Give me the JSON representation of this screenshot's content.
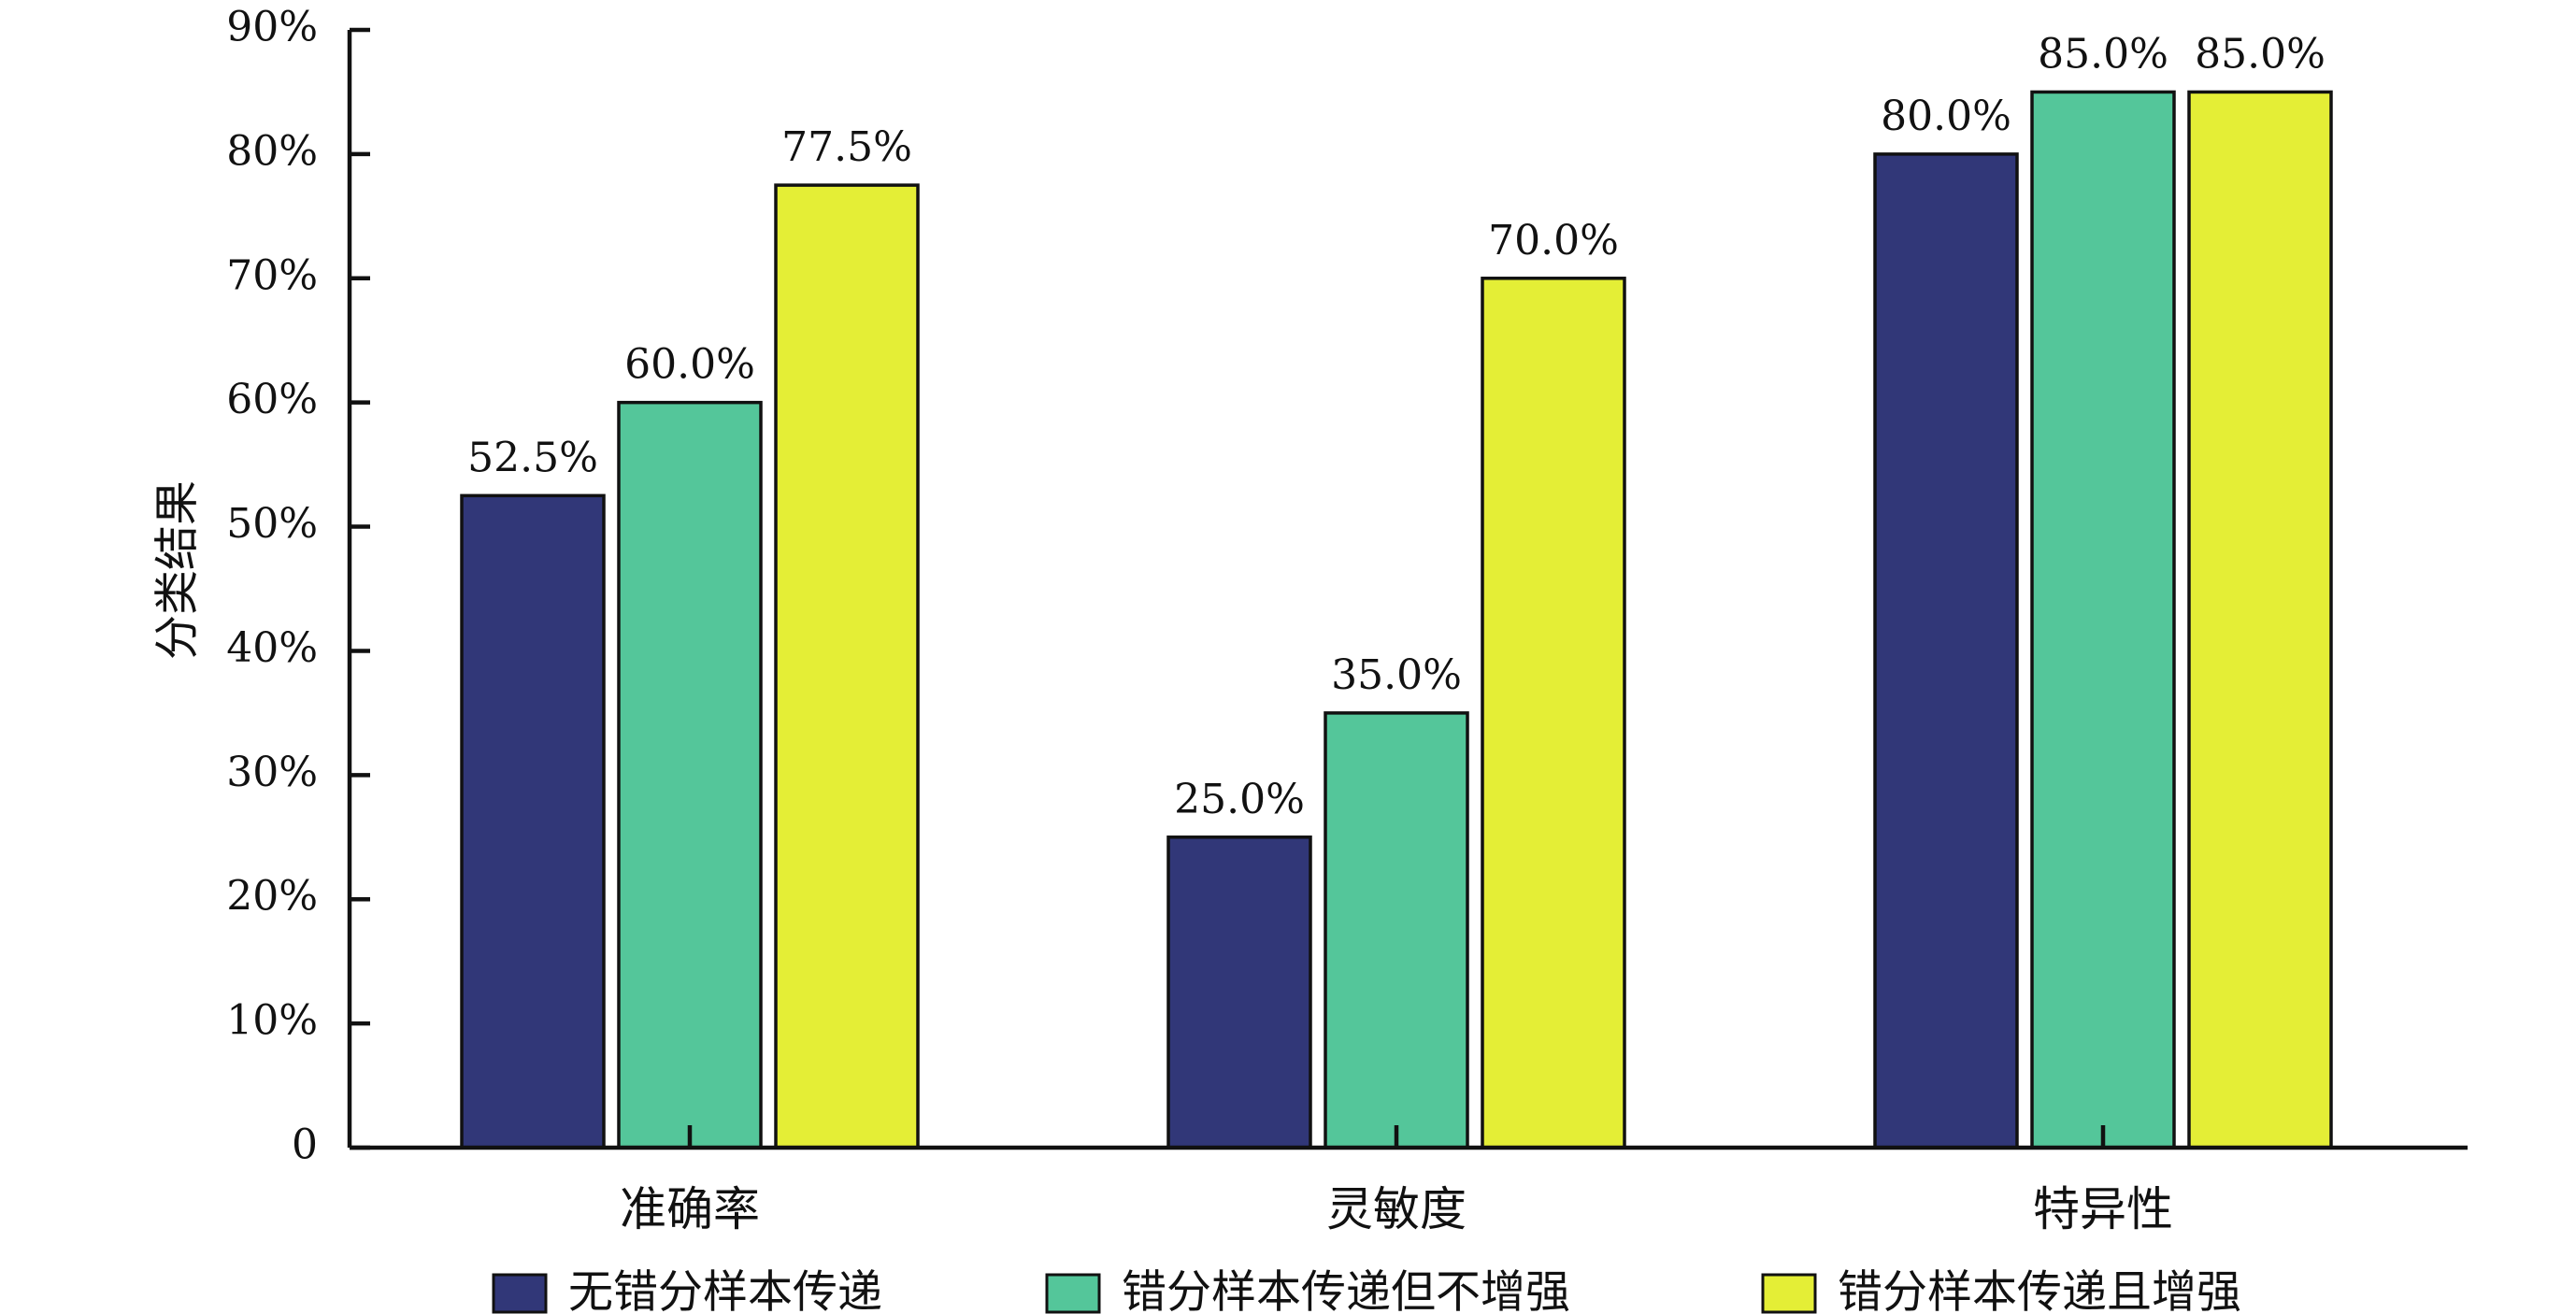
{
  "chart_data": {
    "type": "bar",
    "categories": [
      "准确率",
      "灵敏度",
      "特异性"
    ],
    "ylabel": "分类结果",
    "xlabel": "",
    "ylim": [
      0,
      90
    ],
    "yticks": [
      {
        "value": 0,
        "label": "0"
      },
      {
        "value": 10,
        "label": "10%"
      },
      {
        "value": 20,
        "label": "20%"
      },
      {
        "value": 30,
        "label": "30%"
      },
      {
        "value": 40,
        "label": "40%"
      },
      {
        "value": 50,
        "label": "50%"
      },
      {
        "value": 60,
        "label": "60%"
      },
      {
        "value": 70,
        "label": "70%"
      },
      {
        "value": 80,
        "label": "80%"
      },
      {
        "value": 90,
        "label": "90%"
      }
    ],
    "series": [
      {
        "name": "无错分样本传递",
        "color": "#313778",
        "values": [
          52.5,
          25.0,
          80.0
        ],
        "labels": [
          "52.5%",
          "25.0%",
          "80.0%"
        ]
      },
      {
        "name": "错分样本传递但不增强",
        "color": "#54c69a",
        "values": [
          60.0,
          35.0,
          85.0
        ],
        "labels": [
          "60.0%",
          "35.0%",
          "85.0%"
        ]
      },
      {
        "name": "错分样本传递且增强",
        "color": "#e4ee36",
        "values": [
          77.5,
          70.0,
          85.0
        ],
        "labels": [
          "77.5%",
          "70.0%",
          "85.0%"
        ]
      }
    ],
    "grid": false,
    "legend_position": "bottom"
  }
}
